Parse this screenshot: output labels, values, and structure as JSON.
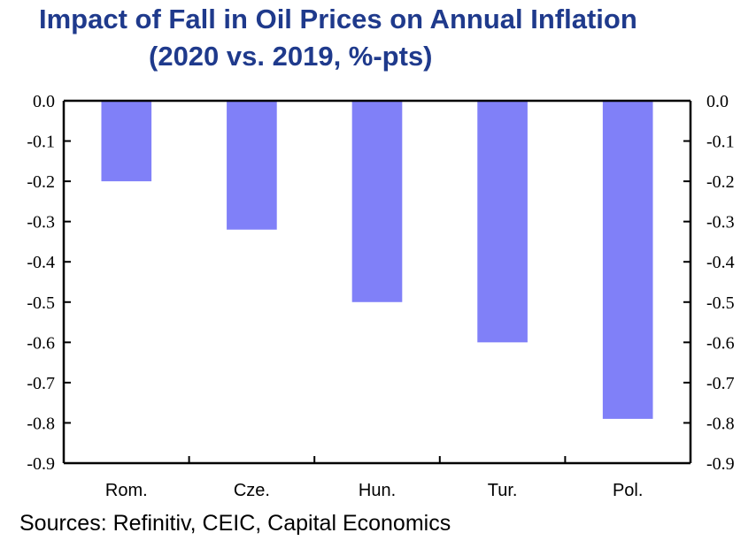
{
  "header": {
    "title_line1": "Impact of Fall in Oil Prices on Annual Inflation",
    "title_line2": "(2020 vs. 2019, %-pts)"
  },
  "footer": {
    "source": "Sources: Refinitiv, CEIC, Capital Economics"
  },
  "colors": {
    "bar": "#8080f8",
    "title": "#1f3a8c",
    "axis": "#000000"
  },
  "chart_data": {
    "type": "bar",
    "title": "Impact of Fall in Oil Prices on Annual Inflation (2020 vs. 2019, %-pts)",
    "categories": [
      "Rom.",
      "Cze.",
      "Hun.",
      "Tur.",
      "Pol."
    ],
    "values": [
      -0.2,
      -0.32,
      -0.5,
      -0.6,
      -0.79
    ],
    "ylim": [
      -0.9,
      0.0
    ],
    "yticks": [
      "0.0",
      "-0.1",
      "-0.2",
      "-0.3",
      "-0.4",
      "-0.5",
      "-0.6",
      "-0.7",
      "-0.8",
      "-0.9"
    ],
    "ytick_values": [
      0.0,
      -0.1,
      -0.2,
      -0.3,
      -0.4,
      -0.5,
      -0.6,
      -0.7,
      -0.8,
      -0.9
    ],
    "xlabel": "",
    "ylabel": "",
    "secondary_y_axis": true,
    "grid": false,
    "legend": "none"
  }
}
